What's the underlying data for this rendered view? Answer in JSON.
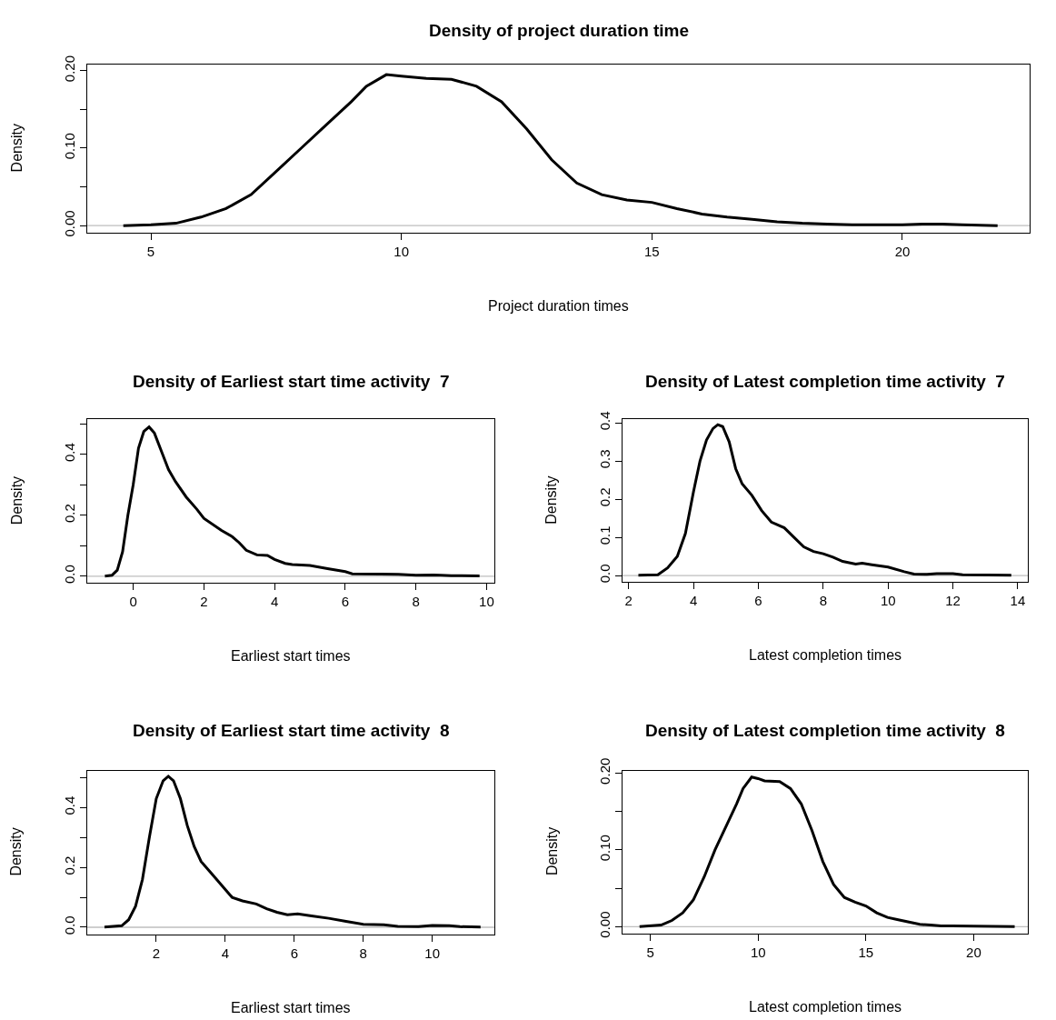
{
  "chart_data": [
    {
      "type": "line",
      "title": "Density of project duration time",
      "xlabel": "Project duration times",
      "ylabel": "Density",
      "color": "#000000",
      "line_style": "solid",
      "marker": "none",
      "x": [
        4.45,
        5,
        5.5,
        6,
        6.5,
        7,
        7.5,
        8,
        8.5,
        9,
        9.3,
        9.7,
        10,
        10.5,
        11,
        11.5,
        12,
        12.5,
        13,
        13.5,
        14,
        14.5,
        15,
        15.5,
        16,
        16.5,
        17,
        17.5,
        18,
        18.5,
        19,
        19.5,
        20,
        20.4,
        20.8,
        21.2,
        21.9
      ],
      "values": [
        0,
        0.001,
        0.003,
        0.011,
        0.022,
        0.04,
        0.07,
        0.1,
        0.13,
        0.16,
        0.18,
        0.195,
        0.193,
        0.19,
        0.189,
        0.18,
        0.16,
        0.125,
        0.085,
        0.055,
        0.04,
        0.033,
        0.03,
        0.022,
        0.015,
        0.011,
        0.008,
        0.005,
        0.003,
        0.002,
        0.001,
        0.001,
        0.001,
        0.002,
        0.002,
        0.001,
        0
      ],
      "xlim": [
        3.73,
        22.54
      ],
      "ylim": [
        -0.009,
        0.208
      ],
      "xticks": [
        5,
        10,
        15,
        20
      ],
      "yticks": [
        {
          "value": 0,
          "label": "0.00"
        },
        {
          "value": 0.05,
          "label": null
        },
        {
          "value": 0.1,
          "label": "0.10"
        },
        {
          "value": 0.15,
          "label": null
        },
        {
          "value": 0.2,
          "label": "0.20"
        }
      ],
      "ref_lines": [
        {
          "axis": "y",
          "value": 0,
          "color": "#bebebe"
        }
      ]
    },
    {
      "type": "line",
      "title": "Density of Earliest start time activity  7",
      "xlabel": "Earliest start times",
      "ylabel": "Density",
      "color": "#000000",
      "line_style": "solid",
      "marker": "none",
      "x": [
        -0.8,
        -0.6,
        -0.45,
        -0.3,
        -0.15,
        0,
        0.15,
        0.3,
        0.45,
        0.6,
        0.8,
        1.0,
        1.2,
        1.5,
        1.8,
        2.0,
        2.5,
        2.8,
        3.0,
        3.2,
        3.5,
        3.8,
        4.0,
        4.3,
        4.5,
        5.0,
        5.5,
        6.0,
        6.2,
        7.0,
        7.5,
        8.0,
        8.5,
        8.7,
        9.0,
        9.8
      ],
      "values": [
        0,
        0.003,
        0.02,
        0.08,
        0.2,
        0.3,
        0.42,
        0.475,
        0.49,
        0.47,
        0.41,
        0.35,
        0.31,
        0.26,
        0.22,
        0.19,
        0.15,
        0.13,
        0.11,
        0.085,
        0.07,
        0.068,
        0.055,
        0.042,
        0.038,
        0.035,
        0.025,
        0.015,
        0.008,
        0.007,
        0.006,
        0.003,
        0.004,
        0.003,
        0.002,
        0.001
      ],
      "xlim": [
        -1.3,
        10.22
      ],
      "ylim": [
        -0.022,
        0.515
      ],
      "xticks": [
        0,
        2,
        4,
        6,
        8,
        10
      ],
      "yticks": [
        {
          "value": 0,
          "label": "0.0"
        },
        {
          "value": 0.1,
          "label": null
        },
        {
          "value": 0.2,
          "label": "0.2"
        },
        {
          "value": 0.3,
          "label": null
        },
        {
          "value": 0.4,
          "label": "0.4"
        },
        {
          "value": 0.5,
          "label": null
        }
      ],
      "ref_lines": [
        {
          "axis": "y",
          "value": 0,
          "color": "#bebebe"
        }
      ]
    },
    {
      "type": "line",
      "title": "Density of Latest completion time activity  7",
      "xlabel": "Latest completion times",
      "ylabel": "Density",
      "color": "#000000",
      "line_style": "solid",
      "marker": "none",
      "x": [
        2.3,
        2.9,
        3.2,
        3.5,
        3.75,
        4.0,
        4.2,
        4.4,
        4.6,
        4.75,
        4.9,
        5.1,
        5.3,
        5.5,
        5.8,
        6.1,
        6.4,
        6.8,
        7.1,
        7.4,
        7.7,
        8.0,
        8.3,
        8.6,
        9.0,
        9.2,
        9.5,
        10.0,
        10.5,
        10.8,
        11.2,
        11.5,
        12.0,
        12.3,
        13.8
      ],
      "values": [
        0.001,
        0.002,
        0.02,
        0.05,
        0.11,
        0.22,
        0.3,
        0.355,
        0.385,
        0.395,
        0.39,
        0.35,
        0.28,
        0.24,
        0.21,
        0.17,
        0.14,
        0.125,
        0.1,
        0.075,
        0.063,
        0.057,
        0.048,
        0.037,
        0.03,
        0.032,
        0.028,
        0.022,
        0.01,
        0.004,
        0.003,
        0.005,
        0.005,
        0.002,
        0.001
      ],
      "xlim": [
        1.81,
        14.31
      ],
      "ylim": [
        -0.017,
        0.409
      ],
      "xticks": [
        2,
        4,
        6,
        8,
        10,
        12,
        14
      ],
      "yticks": [
        {
          "value": 0,
          "label": "0.0"
        },
        {
          "value": 0.1,
          "label": "0.1"
        },
        {
          "value": 0.2,
          "label": "0.2"
        },
        {
          "value": 0.3,
          "label": "0.3"
        },
        {
          "value": 0.4,
          "label": "0.4"
        }
      ],
      "ref_lines": [
        {
          "axis": "y",
          "value": 0,
          "color": "#bebebe"
        }
      ]
    },
    {
      "type": "line",
      "title": "Density of Earliest start time activity  8",
      "xlabel": "Earliest start times",
      "ylabel": "Density",
      "color": "#000000",
      "line_style": "solid",
      "marker": "none",
      "x": [
        0.5,
        1.0,
        1.2,
        1.4,
        1.6,
        1.8,
        2.0,
        2.2,
        2.35,
        2.5,
        2.7,
        2.9,
        3.1,
        3.3,
        3.6,
        3.9,
        4.2,
        4.5,
        4.9,
        5.2,
        5.5,
        5.8,
        6.1,
        6.5,
        7.0,
        7.5,
        8.0,
        8.6,
        9.0,
        9.6,
        10.0,
        10.5,
        10.8,
        11.4
      ],
      "values": [
        0.001,
        0.005,
        0.025,
        0.07,
        0.16,
        0.3,
        0.43,
        0.49,
        0.505,
        0.49,
        0.43,
        0.34,
        0.27,
        0.22,
        0.18,
        0.14,
        0.1,
        0.088,
        0.078,
        0.062,
        0.05,
        0.042,
        0.045,
        0.038,
        0.03,
        0.02,
        0.01,
        0.008,
        0.003,
        0.002,
        0.006,
        0.005,
        0.002,
        0.001
      ],
      "xlim": [
        0.0,
        11.8
      ],
      "ylim": [
        -0.023,
        0.524
      ],
      "xticks": [
        2,
        4,
        6,
        8,
        10
      ],
      "yticks": [
        {
          "value": 0,
          "label": "0.0"
        },
        {
          "value": 0.1,
          "label": null
        },
        {
          "value": 0.2,
          "label": "0.2"
        },
        {
          "value": 0.3,
          "label": null
        },
        {
          "value": 0.4,
          "label": "0.4"
        },
        {
          "value": 0.5,
          "label": null
        }
      ],
      "ref_lines": [
        {
          "axis": "y",
          "value": 0,
          "color": "#bebebe"
        }
      ]
    },
    {
      "type": "line",
      "title": "Density of Latest completion time activity  8",
      "xlabel": "Latest completion times",
      "ylabel": "Density",
      "color": "#000000",
      "line_style": "solid",
      "marker": "none",
      "x": [
        4.5,
        5.5,
        6,
        6.5,
        7,
        7.5,
        8,
        8.5,
        9,
        9.3,
        9.7,
        10,
        10.3,
        11,
        11.5,
        12,
        12.5,
        13,
        13.5,
        14,
        14.5,
        15,
        15.5,
        16,
        16.5,
        17,
        17.5,
        18,
        18.5,
        19,
        21.9
      ],
      "values": [
        0,
        0.002,
        0.008,
        0.018,
        0.035,
        0.065,
        0.1,
        0.13,
        0.16,
        0.18,
        0.195,
        0.193,
        0.19,
        0.189,
        0.18,
        0.16,
        0.125,
        0.085,
        0.055,
        0.038,
        0.032,
        0.027,
        0.018,
        0.012,
        0.009,
        0.006,
        0.003,
        0.002,
        0.001,
        0.001,
        0
      ],
      "xlim": [
        3.71,
        22.51
      ],
      "ylim": [
        -0.0086,
        0.2034
      ],
      "xticks": [
        5,
        10,
        15,
        20
      ],
      "yticks": [
        {
          "value": 0,
          "label": "0.00"
        },
        {
          "value": 0.05,
          "label": null
        },
        {
          "value": 0.1,
          "label": "0.10"
        },
        {
          "value": 0.15,
          "label": null
        },
        {
          "value": 0.2,
          "label": "0.20"
        }
      ],
      "ref_lines": [
        {
          "axis": "y",
          "value": 0,
          "color": "#bebebe"
        }
      ]
    }
  ]
}
